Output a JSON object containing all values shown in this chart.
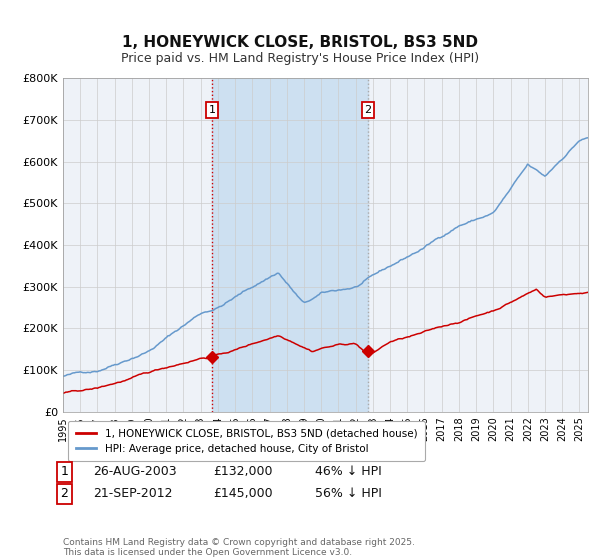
{
  "title": "1, HONEYWICK CLOSE, BRISTOL, BS3 5ND",
  "subtitle": "Price paid vs. HM Land Registry's House Price Index (HPI)",
  "title_fontsize": 11,
  "subtitle_fontsize": 9,
  "ylim": [
    0,
    800000
  ],
  "yticks": [
    0,
    100000,
    200000,
    300000,
    400000,
    500000,
    600000,
    700000,
    800000
  ],
  "ytick_labels": [
    "£0",
    "£100K",
    "£200K",
    "£300K",
    "£400K",
    "£500K",
    "£600K",
    "£700K",
    "£800K"
  ],
  "hpi_color": "#6699cc",
  "price_color": "#cc0000",
  "background_color": "#ffffff",
  "plot_bg_color": "#eef2f8",
  "grid_color": "#cccccc",
  "shade_color": "#c8ddf0",
  "vline1_x": 2003.65,
  "vline2_x": 2012.72,
  "sale1_date": "26-AUG-2003",
  "sale1_price": 132000,
  "sale1_label": "46% ↓ HPI",
  "sale2_date": "21-SEP-2012",
  "sale2_price": 145000,
  "sale2_label": "56% ↓ HPI",
  "legend_label_red": "1, HONEYWICK CLOSE, BRISTOL, BS3 5ND (detached house)",
  "legend_label_blue": "HPI: Average price, detached house, City of Bristol",
  "footnote": "Contains HM Land Registry data © Crown copyright and database right 2025.\nThis data is licensed under the Open Government Licence v3.0.",
  "xmin": 1995,
  "xmax": 2025.5,
  "start_year": 1995,
  "end_year": 2026,
  "steps_per_year": 12
}
